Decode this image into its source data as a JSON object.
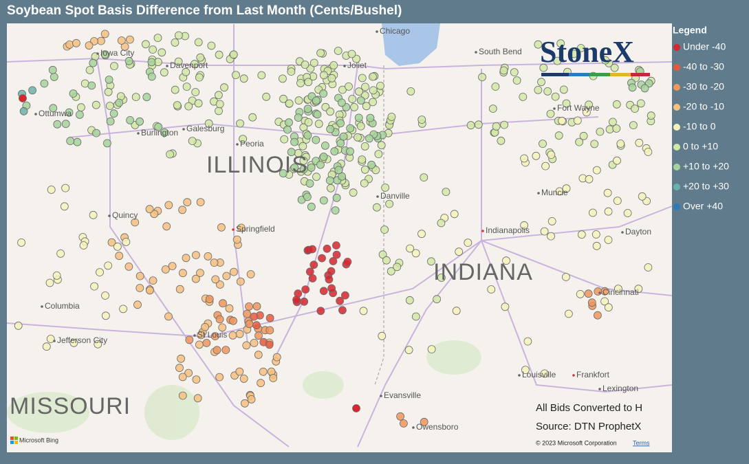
{
  "title": "Soybean Spot Basis Difference from Last Month (Cents/Bushel)",
  "legend": {
    "title": "Legend",
    "items": [
      {
        "label": "Under -40",
        "color": "#d7262e"
      },
      {
        "label": "-40 to -30",
        "color": "#e65a3c"
      },
      {
        "label": "-30 to -20",
        "color": "#f0975c"
      },
      {
        "label": "-20 to -10",
        "color": "#f6c07f"
      },
      {
        "label": "-10 to 0",
        "color": "#f4f3bb"
      },
      {
        "label": "0 to +10",
        "color": "#d2e8a6"
      },
      {
        "label": "+10 to +20",
        "color": "#a6d49a"
      },
      {
        "label": "+20 to +30",
        "color": "#6db0a9"
      },
      {
        "label": "Over +40",
        "color": "#2c7bb6"
      }
    ]
  },
  "map": {
    "states": [
      "ILLINOIS",
      "INDIANA",
      "MISSOURI"
    ],
    "cities": [
      "Chicago",
      "South Bend",
      "Joliet",
      "Davenport",
      "Iowa City",
      "Ottumwa",
      "Burlington",
      "Galesburg",
      "Peoria",
      "Fort Wayne",
      "Muncie",
      "Danville",
      "Quincy",
      "Springfield",
      "Indianapolis",
      "Dayton",
      "Columbia",
      "Jefferson City",
      "St Louis",
      "Cincinnati",
      "Louisville",
      "Frankfort",
      "Lexington",
      "Evansville",
      "Owensboro"
    ],
    "logo": "StoneX",
    "notes": [
      "All Bids Converted to H",
      "Source: DTN ProphetX"
    ],
    "copyright": "© 2023 Microsoft Corporation",
    "terms": "Terms",
    "provider": "Microsoft Bing"
  }
}
